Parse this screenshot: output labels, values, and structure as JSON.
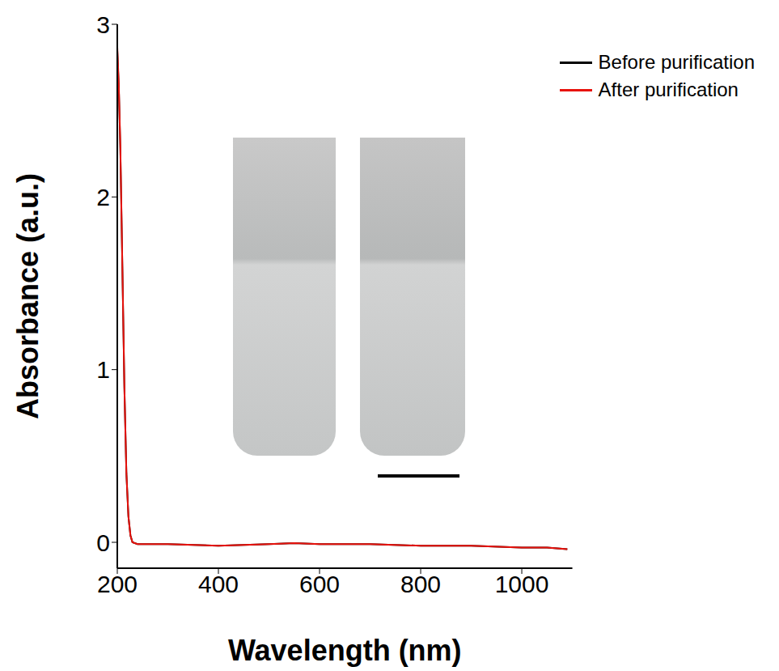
{
  "chart_data": {
    "type": "line",
    "x_label": "Wavelength (nm)",
    "y_label": "Absorbance (a.u.)",
    "x": [
      200,
      203,
      206,
      210,
      214,
      218,
      222,
      226,
      230,
      240,
      300,
      400,
      500,
      550,
      600,
      700,
      800,
      900,
      1000,
      1050,
      1090
    ],
    "series": [
      {
        "name": "Before purification",
        "color": "#000000",
        "values": [
          2.85,
          2.63,
          2.28,
          1.6,
          0.9,
          0.4,
          0.15,
          0.04,
          0.0,
          -0.01,
          -0.01,
          -0.02,
          -0.01,
          -0.005,
          -0.01,
          -0.01,
          -0.02,
          -0.02,
          -0.03,
          -0.03,
          -0.04
        ]
      },
      {
        "name": "After purification",
        "color": "#e8120c",
        "values": [
          2.87,
          2.65,
          2.3,
          1.6,
          0.9,
          0.4,
          0.15,
          0.04,
          0.0,
          -0.01,
          -0.01,
          -0.02,
          -0.01,
          -0.005,
          -0.01,
          -0.01,
          -0.02,
          -0.02,
          -0.03,
          -0.03,
          -0.04
        ]
      }
    ],
    "xlim": [
      200,
      1100
    ],
    "xticks": [
      200,
      400,
      600,
      800,
      1000
    ],
    "ylim": [
      -0.15,
      3
    ],
    "yticks": [
      0,
      1,
      2,
      3
    ],
    "legend": "upper right",
    "grid": false
  }
}
